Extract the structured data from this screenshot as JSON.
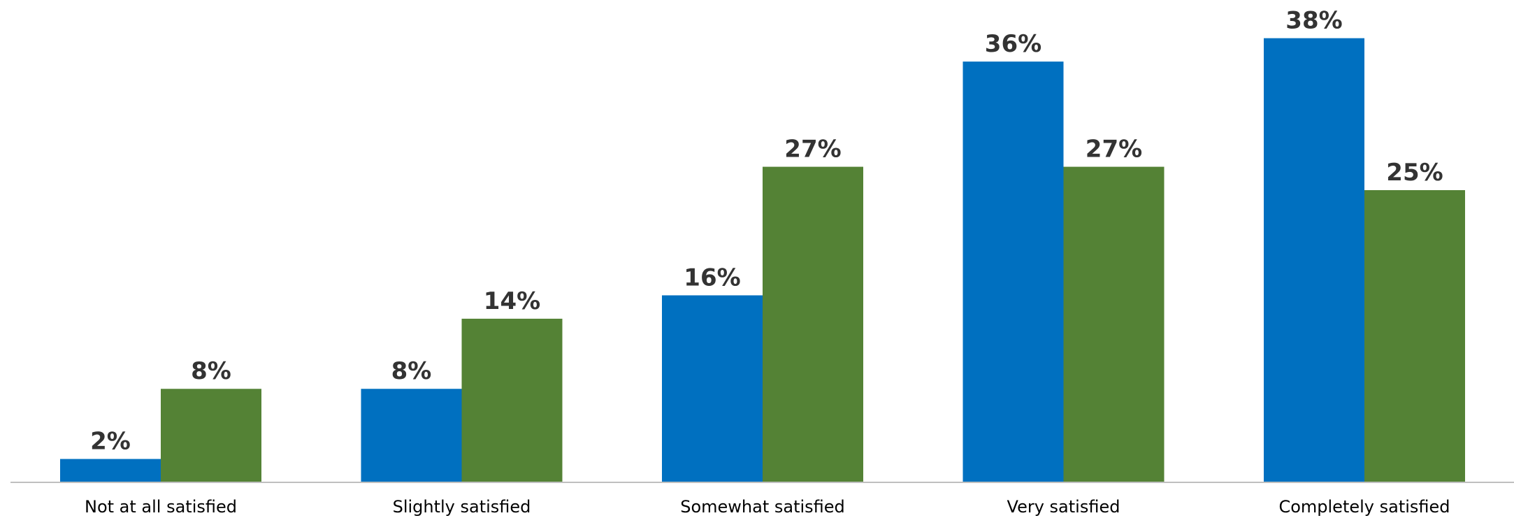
{
  "chart_data": {
    "type": "bar",
    "categories": [
      "Not at all satisfied",
      "Slightly satisfied",
      "Somewhat satisfied",
      "Very satisfied",
      "Completely satisfied"
    ],
    "series": [
      {
        "values": [
          2,
          8,
          16,
          36,
          38
        ],
        "labels": [
          "2%",
          "8%",
          "16%",
          "36%",
          "38%"
        ],
        "color": "#0070c0"
      },
      {
        "values": [
          8,
          14,
          27,
          27,
          25
        ],
        "labels": [
          "8%",
          "14%",
          "27%",
          "27%",
          "25%"
        ],
        "color": "#548235"
      }
    ],
    "ylim": [
      0,
      40
    ],
    "grid": false,
    "legend": "none",
    "axis_color": "#bfbfbf"
  }
}
